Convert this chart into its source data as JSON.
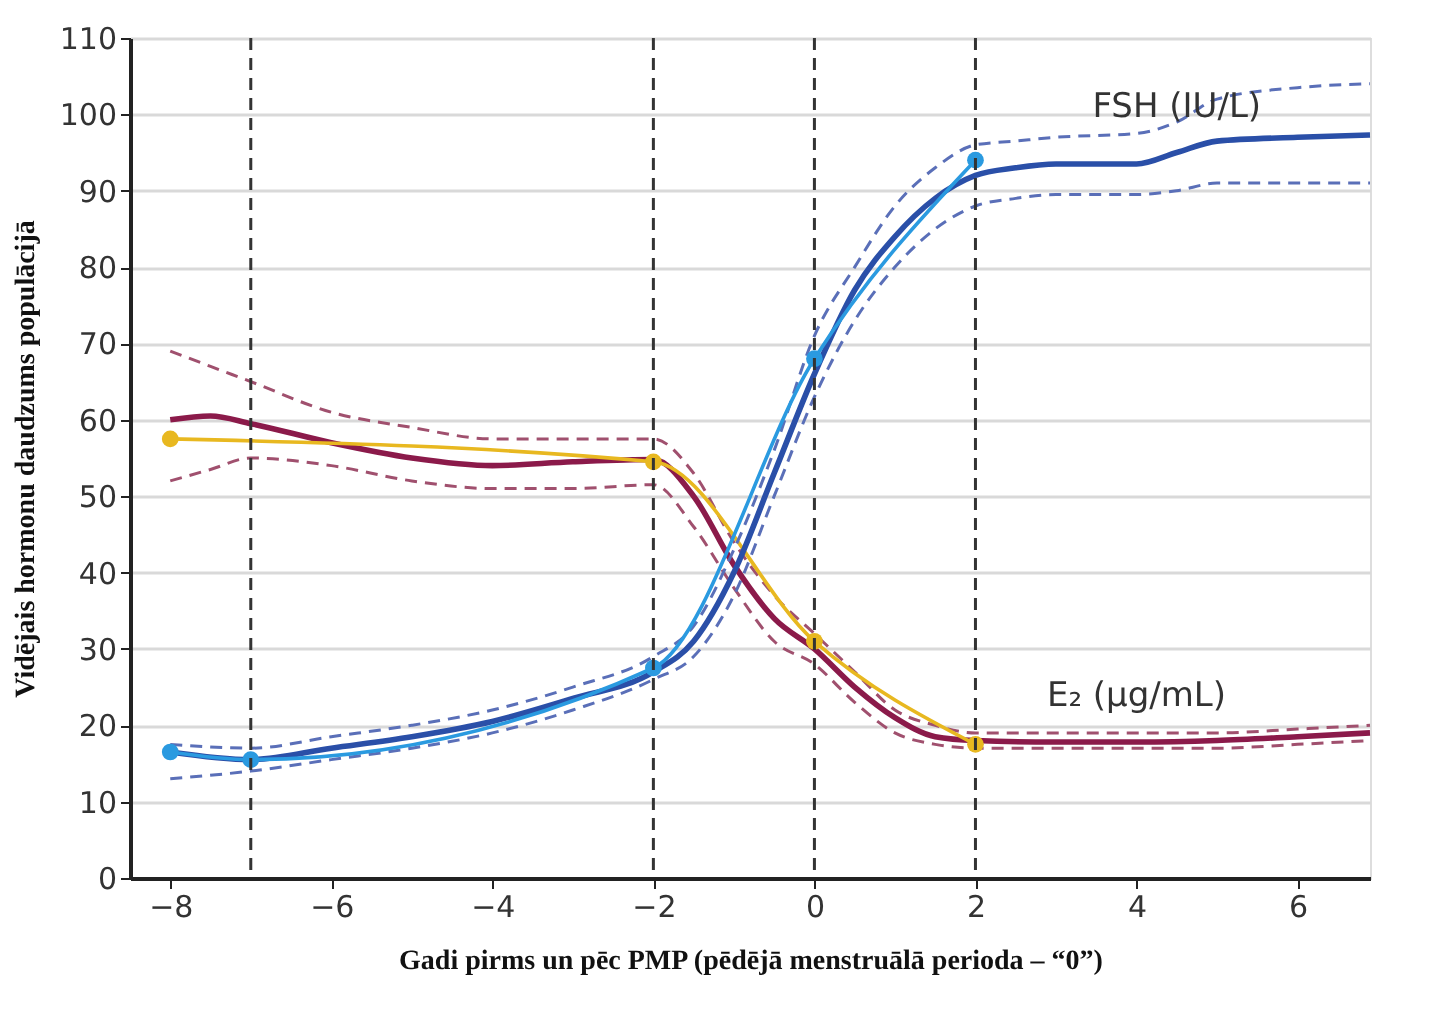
{
  "chart_data": {
    "type": "line",
    "xlabel": "Gadi pirms un pēc PMP (pēdējā menstruālā perioda – “0”)",
    "ylabel": "Vidējais hormonu daudzums populācijā",
    "xlim": [
      -8.5,
      6.9
    ],
    "xticks": [
      -8,
      -6,
      -4,
      -2,
      0,
      2,
      4,
      6
    ],
    "ylim": [
      0,
      110
    ],
    "yticks": [
      0,
      10,
      20,
      30,
      40,
      50,
      60,
      70,
      80,
      90,
      100,
      110
    ],
    "grid": "y",
    "line_style": "solid",
    "ref_lines": [
      {
        "axis": "x",
        "value": -7,
        "color": "#333333",
        "line_style": "dashed"
      },
      {
        "axis": "x",
        "value": -2,
        "color": "#333333",
        "line_style": "dashed"
      },
      {
        "axis": "x",
        "value": 0,
        "color": "#333333",
        "line_style": "dashed"
      },
      {
        "axis": "x",
        "value": 2,
        "color": "#333333",
        "line_style": "dashed"
      }
    ],
    "series": [
      {
        "color": "#a0506e",
        "marker": "none",
        "line_style": "dashed",
        "x": [
          -8,
          -7.5,
          -7,
          -6,
          -5,
          -4,
          -3,
          -2,
          -1.5,
          -1,
          -0.5,
          0,
          0.5,
          1,
          1.5,
          2,
          3,
          4,
          5,
          6,
          6.9
        ],
        "values": [
          69,
          67,
          65,
          61,
          59,
          57.5,
          57.5,
          57.5,
          53,
          44,
          37,
          32,
          27,
          22,
          20,
          19,
          19,
          19,
          19,
          19.5,
          20
        ]
      },
      {
        "color": "#a0506e",
        "marker": "none",
        "line_style": "dashed",
        "x": [
          -8,
          -7.5,
          -7,
          -6,
          -5,
          -4,
          -3,
          -2,
          -1.5,
          -1,
          -0.5,
          0,
          0.5,
          1,
          1.5,
          2,
          3,
          4,
          5,
          6,
          6.9
        ],
        "values": [
          52,
          53.5,
          55,
          54,
          52,
          51,
          51,
          51.5,
          46,
          38,
          31,
          28,
          23,
          19,
          17.5,
          17,
          17,
          17,
          17,
          17.5,
          18
        ]
      },
      {
        "name": "E₂ (µg/mL)",
        "color": "#8b1a4a",
        "marker": "none",
        "x": [
          -8,
          -7.5,
          -7,
          -6,
          -5,
          -4,
          -3,
          -2,
          -1.5,
          -1,
          -0.5,
          0,
          0.5,
          1,
          1.5,
          2,
          3,
          4,
          5,
          6,
          6.9
        ],
        "values": [
          60,
          60.5,
          59.5,
          57,
          55,
          54,
          54.5,
          54.8,
          50,
          41,
          34,
          30,
          25,
          21,
          18.5,
          18,
          17.8,
          17.8,
          18,
          18.5,
          19
        ]
      },
      {
        "color": "#e8b820",
        "marker": "circle",
        "x": [
          -8,
          -2,
          0,
          2
        ],
        "values": [
          57.5,
          54.5,
          31,
          17.5
        ]
      },
      {
        "color": "#5a6fb8",
        "marker": "none",
        "line_style": "dashed",
        "x": [
          -8,
          -7,
          -6,
          -5,
          -4,
          -3,
          -2,
          -1.5,
          -1,
          -0.5,
          0,
          0.5,
          1,
          1.5,
          2,
          2.5,
          3,
          4,
          4.5,
          5,
          6,
          6.9
        ],
        "values": [
          17.5,
          17,
          18.5,
          20,
          22,
          25,
          29,
          33,
          43,
          56,
          71,
          80,
          88,
          93,
          96,
          96.5,
          97,
          97.5,
          99,
          102,
          103.5,
          104
        ]
      },
      {
        "color": "#5a6fb8",
        "marker": "none",
        "line_style": "dashed",
        "x": [
          -8,
          -7,
          -6,
          -5,
          -4,
          -3,
          -2,
          -1.5,
          -1,
          -0.5,
          0,
          0.5,
          1,
          1.5,
          2,
          2.5,
          3,
          4,
          4.5,
          5,
          6,
          6.9
        ],
        "values": [
          13,
          14,
          15.5,
          17,
          19,
          22,
          26,
          29,
          37,
          50,
          63,
          73,
          80,
          85,
          88,
          89,
          89.5,
          89.5,
          90,
          91,
          91,
          91
        ]
      },
      {
        "name": "FSH (IU/L)",
        "color": "#2a4fa8",
        "marker": "none",
        "x": [
          -8,
          -7,
          -6,
          -5,
          -4,
          -3,
          -2,
          -1.5,
          -1,
          -0.5,
          0,
          0.5,
          1,
          1.5,
          2,
          2.5,
          3,
          4,
          4.5,
          5,
          6,
          6.9
        ],
        "values": [
          16.5,
          15.5,
          17,
          18.5,
          20.5,
          23.5,
          27,
          31,
          40,
          53,
          66,
          77,
          84,
          89,
          92,
          93,
          93.5,
          93.5,
          95,
          96.5,
          97,
          97.3
        ]
      },
      {
        "color": "#2a9ae0",
        "marker": "circle",
        "x": [
          -8,
          -7,
          -2,
          0,
          2
        ],
        "values": [
          16.5,
          15.5,
          27.5,
          68,
          94
        ]
      }
    ]
  }
}
